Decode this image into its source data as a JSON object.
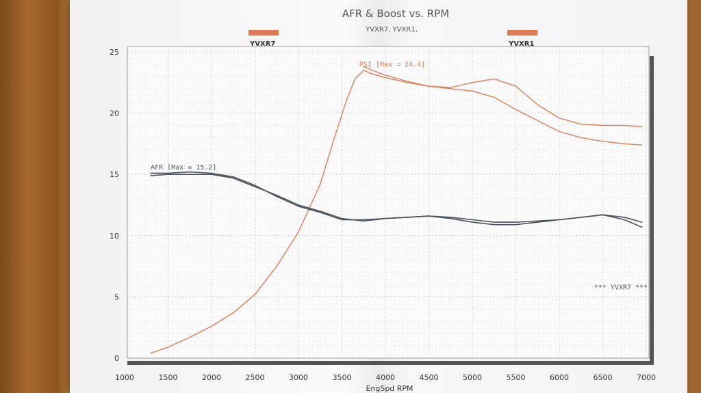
{
  "chart_data": {
    "type": "line",
    "title": "AFR & Boost vs. RPM",
    "subtitle": "YVXR7, YVXR1,",
    "xlabel": "EngSpd RPM",
    "ylabel": "",
    "xlim": [
      1000,
      7000
    ],
    "ylim": [
      0,
      25
    ],
    "x_ticks": [
      1000,
      1500,
      2000,
      2500,
      3000,
      3500,
      4000,
      4500,
      5000,
      5500,
      6000,
      6500,
      7000
    ],
    "y_ticks": [
      0,
      5,
      10,
      15,
      20,
      25
    ],
    "grid": true,
    "legend": [
      {
        "name": "YVXR7",
        "color": "#e07a55",
        "position": "top-left"
      },
      {
        "name": "YVXR1",
        "color": "#e07a55",
        "position": "top-right"
      }
    ],
    "annotations": [
      {
        "text": "PSI   [Max = 24.4]",
        "x": 3700,
        "y": 23.8,
        "color": "#e07a55"
      },
      {
        "text": "AFR   [Max = 15.2]",
        "x": 1300,
        "y": 15.4,
        "color": "#555555"
      },
      {
        "text": "*** YVXR7 ***",
        "x": 6400,
        "y": 5.6,
        "color": "#555555"
      }
    ],
    "series": [
      {
        "name": "YVXR7",
        "metric": "PSI",
        "color": "#e07a55",
        "x": [
          1300,
          1500,
          1750,
          2000,
          2250,
          2500,
          2750,
          3000,
          3250,
          3400,
          3550,
          3650,
          3750,
          3850,
          4000,
          4250,
          4500,
          4750,
          5000,
          5250,
          5500,
          5750,
          6000,
          6250,
          6500,
          6750,
          6950
        ],
        "y": [
          0.4,
          0.9,
          1.7,
          2.6,
          3.7,
          5.2,
          7.5,
          10.3,
          14.2,
          17.7,
          21.0,
          22.8,
          23.5,
          23.2,
          22.9,
          22.5,
          22.2,
          22.0,
          21.8,
          21.3,
          20.3,
          19.4,
          18.5,
          18.0,
          17.7,
          17.5,
          17.4
        ]
      },
      {
        "name": "YVXR1",
        "metric": "PSI",
        "color": "#e07a55",
        "x": [
          3750,
          3850,
          4000,
          4250,
          4500,
          4750,
          5000,
          5250,
          5500,
          5750,
          6000,
          6250,
          6500,
          6750,
          6950
        ],
        "y": [
          23.8,
          23.5,
          23.1,
          22.6,
          22.2,
          22.1,
          22.5,
          22.8,
          22.2,
          20.7,
          19.6,
          19.1,
          19.0,
          19.0,
          18.9
        ]
      },
      {
        "name": "YVXR7",
        "metric": "AFR",
        "color": "#4a4f57",
        "x": [
          1300,
          1500,
          1750,
          2000,
          2250,
          2500,
          2750,
          3000,
          3250,
          3500,
          3750,
          4000,
          4250,
          4500,
          4750,
          5000,
          5250,
          5500,
          5750,
          6000,
          6250,
          6500,
          6750,
          6950
        ],
        "y": [
          14.9,
          15.0,
          15.0,
          15.0,
          14.7,
          14.0,
          13.3,
          12.5,
          12.0,
          11.4,
          11.2,
          11.4,
          11.5,
          11.6,
          11.5,
          11.3,
          11.1,
          11.1,
          11.2,
          11.3,
          11.5,
          11.7,
          11.5,
          11.1
        ]
      },
      {
        "name": "YVXR1",
        "metric": "AFR",
        "color": "#4a4f57",
        "x": [
          1300,
          1500,
          1750,
          2000,
          2250,
          2500,
          2750,
          3000,
          3250,
          3500,
          3750,
          4000,
          4250,
          4500,
          4750,
          5000,
          5250,
          5500,
          5750,
          6000,
          6250,
          6500,
          6750,
          6950
        ],
        "y": [
          15.1,
          15.1,
          15.2,
          15.1,
          14.8,
          14.1,
          13.2,
          12.4,
          11.9,
          11.3,
          11.3,
          11.4,
          11.5,
          11.6,
          11.4,
          11.1,
          10.9,
          10.9,
          11.1,
          11.3,
          11.5,
          11.7,
          11.3,
          10.7
        ]
      }
    ]
  }
}
